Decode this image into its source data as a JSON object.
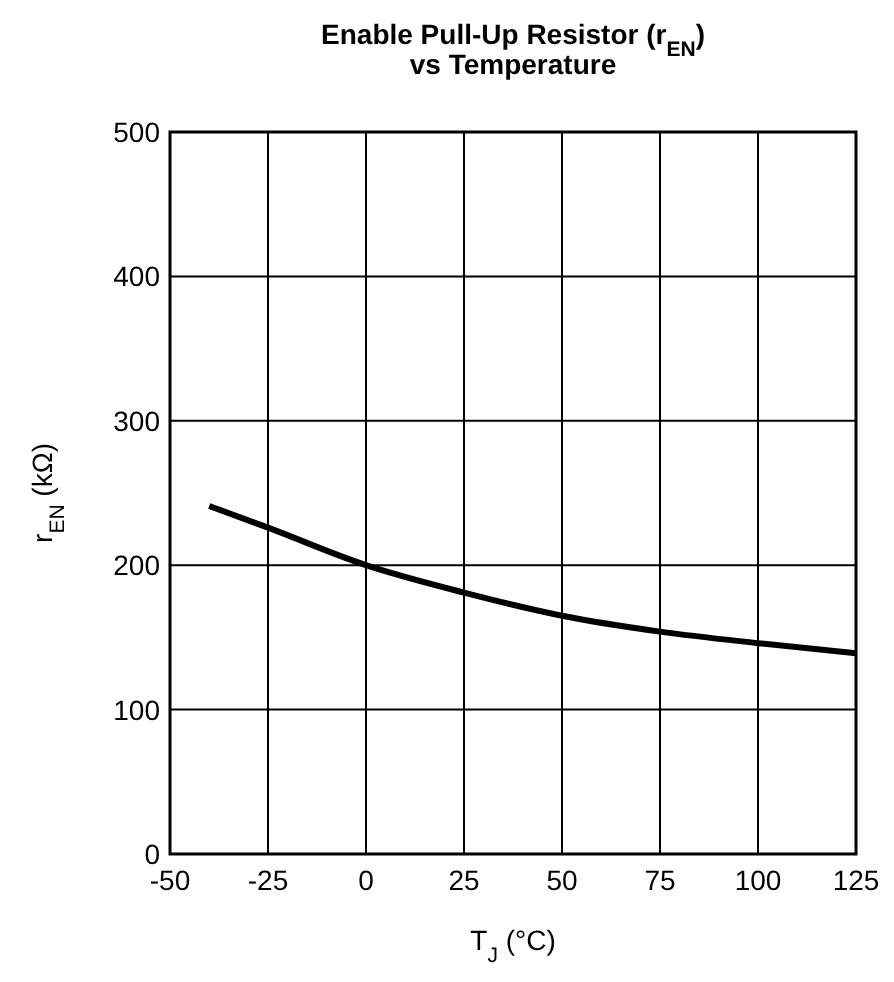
{
  "chart_data": {
    "type": "line",
    "title": "Enable Pull-Up Resistor (r$_{EN}$)\nvs Temperature",
    "xlabel": "T$_{J}$ (°C)",
    "ylabel": "r$_{EN}$ (kΩ)",
    "x": [
      -40,
      -25,
      0,
      25,
      50,
      75,
      100,
      125
    ],
    "series": [
      {
        "color": "#000000",
        "values": [
          241,
          226,
          200,
          181,
          165,
          154,
          146,
          139
        ]
      }
    ],
    "xlim": [
      -50,
      125
    ],
    "xticks": [
      -50,
      -25,
      0,
      25,
      50,
      75,
      100,
      125
    ],
    "ylim": [
      0,
      500
    ],
    "yticks": [
      0,
      100,
      200,
      300,
      400,
      500
    ],
    "grid": true,
    "marker": "none",
    "line_style": "solid"
  }
}
